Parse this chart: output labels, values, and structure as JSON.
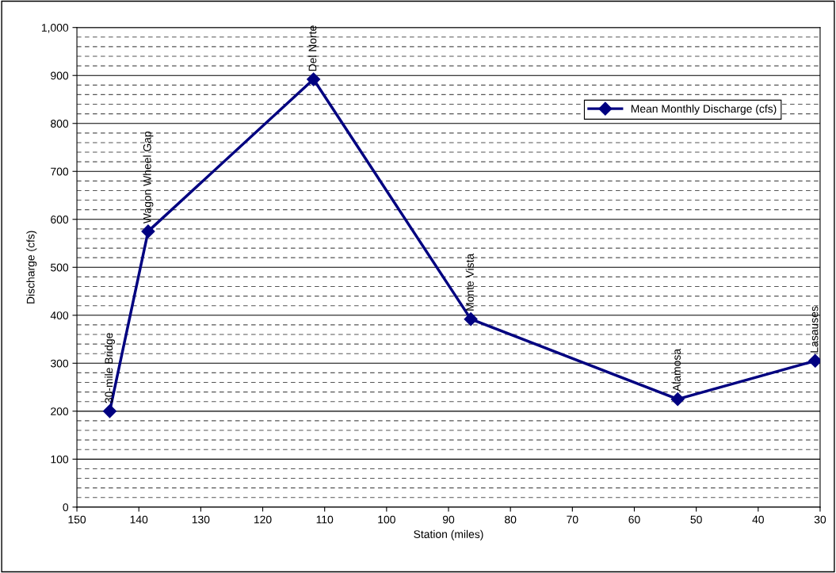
{
  "chart_data": {
    "type": "line",
    "xlabel": "Station (miles)",
    "ylabel": "Discharge (cfs)",
    "x": [
      144.7,
      138.5,
      111.8,
      86.4,
      53.0,
      30.8
    ],
    "series": [
      {
        "name": "Mean Monthly Discharge (cfs)",
        "color": "#000080",
        "values": [
          200,
          575,
          892,
          392,
          225,
          305
        ]
      }
    ],
    "annotations": [
      {
        "text": "30-mile Bridge",
        "x": 144.7,
        "y": 200
      },
      {
        "text": "Wagon Wheel Gap",
        "x": 138.5,
        "y": 575
      },
      {
        "text": "Del Norte",
        "x": 111.8,
        "y": 892
      },
      {
        "text": "Monte Vista",
        "x": 86.4,
        "y": 392
      },
      {
        "text": "Alamosa",
        "x": 53.0,
        "y": 225
      },
      {
        "text": "Lasauses",
        "x": 30.8,
        "y": 305
      }
    ],
    "xlim": [
      150,
      30
    ],
    "xticks": [
      150,
      140,
      130,
      120,
      110,
      100,
      90,
      80,
      70,
      60,
      50,
      40,
      30
    ],
    "ylim": [
      0,
      1000
    ],
    "yticks": [
      0,
      {
        "value": 20,
        "label": null
      },
      {
        "value": 40,
        "label": null
      },
      {
        "value": 60,
        "label": null
      },
      {
        "value": 80,
        "label": null
      },
      100,
      {
        "value": 120,
        "label": null
      },
      {
        "value": 140,
        "label": null
      },
      {
        "value": 160,
        "label": null
      },
      {
        "value": 180,
        "label": null
      },
      200,
      {
        "value": 220,
        "label": null
      },
      {
        "value": 240,
        "label": null
      },
      {
        "value": 260,
        "label": null
      },
      {
        "value": 280,
        "label": null
      },
      300,
      {
        "value": 320,
        "label": null
      },
      {
        "value": 340,
        "label": null
      },
      {
        "value": 360,
        "label": null
      },
      {
        "value": 380,
        "label": null
      },
      400,
      {
        "value": 420,
        "label": null
      },
      {
        "value": 440,
        "label": null
      },
      {
        "value": 460,
        "label": null
      },
      {
        "value": 480,
        "label": null
      },
      500,
      {
        "value": 520,
        "label": null
      },
      {
        "value": 540,
        "label": null
      },
      {
        "value": 560,
        "label": null
      },
      {
        "value": 580,
        "label": null
      },
      600,
      {
        "value": 620,
        "label": null
      },
      {
        "value": 640,
        "label": null
      },
      {
        "value": 660,
        "label": null
      },
      {
        "value": 680,
        "label": null
      },
      700,
      {
        "value": 720,
        "label": null
      },
      {
        "value": 740,
        "label": null
      },
      {
        "value": 760,
        "label": null
      },
      {
        "value": 780,
        "label": null
      },
      800,
      {
        "value": 820,
        "label": null
      },
      {
        "value": 840,
        "label": null
      },
      {
        "value": 860,
        "label": null
      },
      {
        "value": 880,
        "label": null
      },
      900,
      {
        "value": 920,
        "label": null
      },
      {
        "value": 940,
        "label": null
      },
      {
        "value": 960,
        "label": null
      },
      {
        "value": 980,
        "label": null
      },
      {
        "value": 1000,
        "label": "1,000"
      }
    ],
    "grid": "y",
    "legend": "top right",
    "marker": "diamond",
    "line_style": "solid"
  }
}
